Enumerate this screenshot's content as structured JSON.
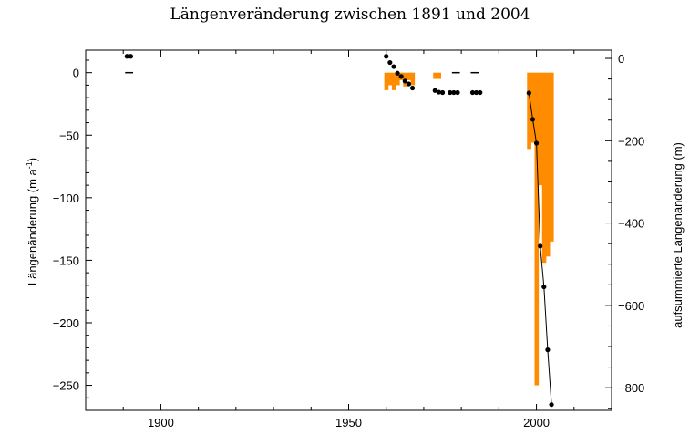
{
  "chart_data": {
    "type": "bar",
    "title": "Längenveränderung zwischen 1891 und 2004",
    "ylabel_left": {
      "main": "Längenänderung  (m a",
      "sup": "-1",
      "close": ")"
    },
    "ylabel_right": "aufsummierte Längenänderung  (m)",
    "xlabel": "",
    "xlim": [
      1880,
      2020
    ],
    "ylim_left": [
      -270,
      18
    ],
    "ylim_right": [
      -855,
      20
    ],
    "x_ticks": [
      1900,
      1950,
      2000
    ],
    "y_ticks_left": [
      0,
      -50,
      -100,
      -150,
      -200,
      -250
    ],
    "y_ticks_right": [
      0,
      -200,
      -400,
      -600,
      -800
    ],
    "grid": false,
    "legend": "none",
    "colors": {
      "bars": "#ff8c00",
      "cumulative": "#000000",
      "axis": "#000000"
    },
    "series": [
      {
        "type": "bar",
        "axis": "left",
        "values": [
          {
            "x": 1891,
            "y": 0.5
          },
          {
            "x": 1892,
            "y": 0.5
          },
          {
            "x": 1960,
            "y": -14
          },
          {
            "x": 1961,
            "y": -10
          },
          {
            "x": 1962,
            "y": -14
          },
          {
            "x": 1963,
            "y": -10
          },
          {
            "x": 1964,
            "y": -6
          },
          {
            "x": 1965,
            "y": -11
          },
          {
            "x": 1966,
            "y": -6
          },
          {
            "x": 1967,
            "y": -10
          },
          {
            "x": 1973,
            "y": -5
          },
          {
            "x": 1974,
            "y": -5
          },
          {
            "x": 1978,
            "y": 0.5
          },
          {
            "x": 1979,
            "y": 0.5
          },
          {
            "x": 1983,
            "y": 0.5
          },
          {
            "x": 1984,
            "y": 0.5
          },
          {
            "x": 1998,
            "y": -61
          },
          {
            "x": 1999,
            "y": -56
          },
          {
            "x": 2000,
            "y": -250
          },
          {
            "x": 2001,
            "y": -90
          },
          {
            "x": 2002,
            "y": -152
          },
          {
            "x": 2003,
            "y": -147
          },
          {
            "x": 2004,
            "y": -135
          }
        ]
      },
      {
        "type": "line",
        "axis": "right",
        "values": [
          {
            "x": 1891,
            "y": 5
          },
          {
            "x": 1892,
            "y": 5
          },
          {
            "x": 1960,
            "y": 5
          },
          {
            "x": 1961,
            "y": -10
          },
          {
            "x": 1962,
            "y": -20
          },
          {
            "x": 1963,
            "y": -36
          },
          {
            "x": 1964,
            "y": -44
          },
          {
            "x": 1965,
            "y": -55
          },
          {
            "x": 1966,
            "y": -62
          },
          {
            "x": 1967,
            "y": -72
          },
          {
            "x": 1973,
            "y": -78
          },
          {
            "x": 1974,
            "y": -82
          },
          {
            "x": 1975,
            "y": -83
          },
          {
            "x": 1977,
            "y": -83
          },
          {
            "x": 1978,
            "y": -83
          },
          {
            "x": 1979,
            "y": -83
          },
          {
            "x": 1983,
            "y": -83
          },
          {
            "x": 1984,
            "y": -83
          },
          {
            "x": 1985,
            "y": -83
          },
          {
            "x": 1998,
            "y": -84
          },
          {
            "x": 1999,
            "y": -148
          },
          {
            "x": 2000,
            "y": -206
          },
          {
            "x": 2001,
            "y": -456
          },
          {
            "x": 2002,
            "y": -555
          },
          {
            "x": 2003,
            "y": -708
          },
          {
            "x": 2004,
            "y": -841
          }
        ],
        "connected_from_x": 1998
      }
    ]
  }
}
